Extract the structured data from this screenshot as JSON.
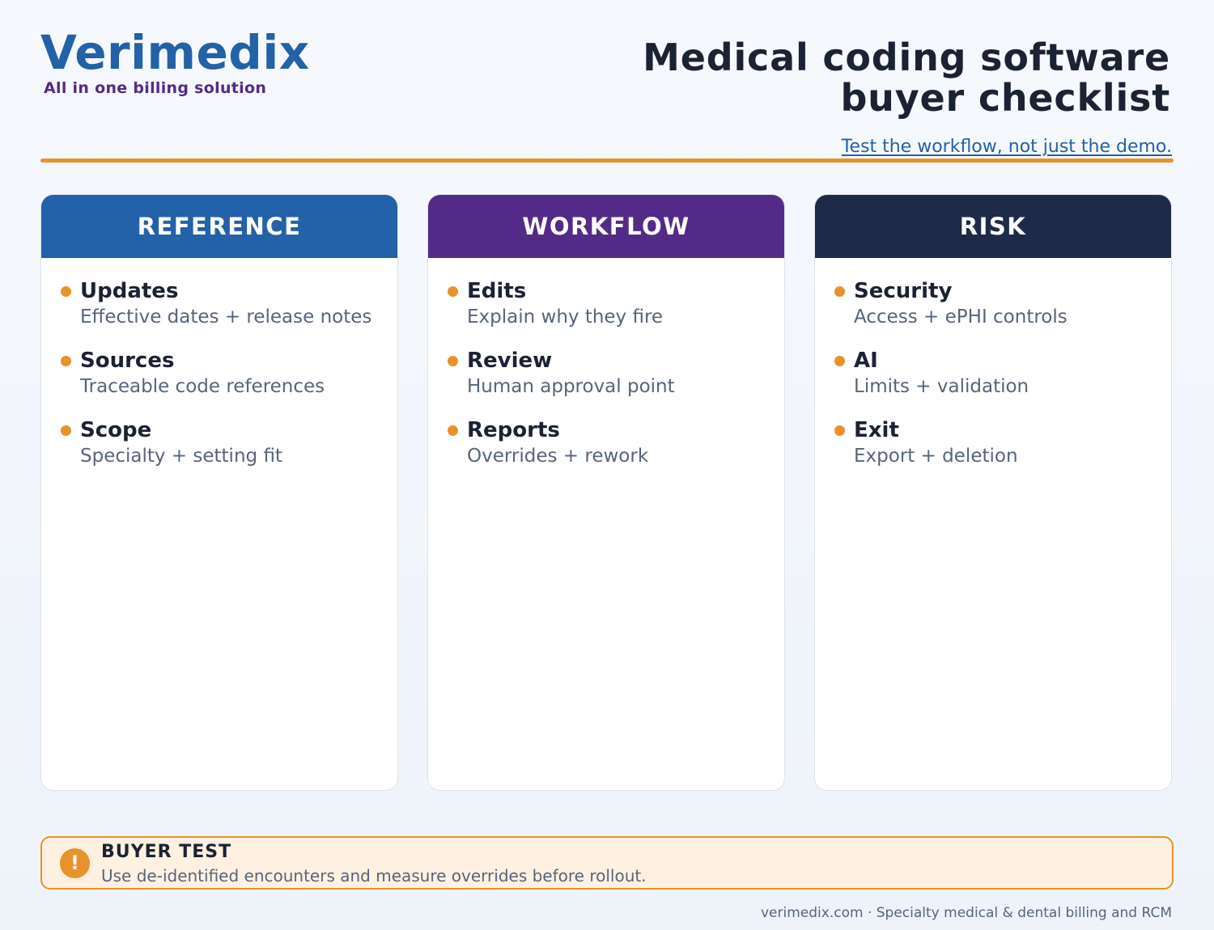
{
  "brand": {
    "name": "Verimedix",
    "tagline": "All in one billing solution"
  },
  "header": {
    "title": "Medical coding software buyer checklist",
    "subtitle": "Test the workflow, not just the demo."
  },
  "colors": {
    "accent": "#e8922b",
    "reference": "#2361a8",
    "workflow": "#542a88",
    "risk": "#1d2a48"
  },
  "columns": [
    {
      "title": "REFERENCE",
      "items": [
        {
          "title": "Updates",
          "desc": "Effective dates + release notes"
        },
        {
          "title": "Sources",
          "desc": "Traceable code references"
        },
        {
          "title": "Scope",
          "desc": "Specialty + setting fit"
        }
      ]
    },
    {
      "title": "WORKFLOW",
      "items": [
        {
          "title": "Edits",
          "desc": "Explain why they fire"
        },
        {
          "title": "Review",
          "desc": "Human approval point"
        },
        {
          "title": "Reports",
          "desc": "Overrides + rework"
        }
      ]
    },
    {
      "title": "RISK",
      "items": [
        {
          "title": "Security",
          "desc": "Access + ePHI controls"
        },
        {
          "title": "AI",
          "desc": "Limits + validation"
        },
        {
          "title": "Exit",
          "desc": "Export + deletion"
        }
      ]
    }
  ],
  "callout": {
    "icon": "exclamation-icon",
    "icon_glyph": "!",
    "title": "BUYER TEST",
    "text": "Use de-identified encounters and measure overrides before rollout."
  },
  "footer": {
    "text": "verimedix.com · Specialty medical & dental billing and RCM"
  }
}
